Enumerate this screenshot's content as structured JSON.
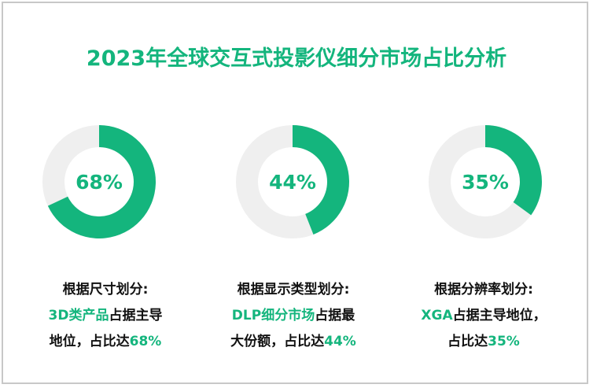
{
  "title": "2023年全球交互式投影仪细分市场占比分析",
  "colors": {
    "accent": "#14b57d",
    "track": "#efefef"
  },
  "chart_data": [
    {
      "type": "pie",
      "variant": "donut",
      "value": 68,
      "label": "68%"
    },
    {
      "type": "pie",
      "variant": "donut",
      "value": 44,
      "label": "44%"
    },
    {
      "type": "pie",
      "variant": "donut",
      "value": 35,
      "label": "35%"
    }
  ],
  "captions": [
    {
      "heading": "根据尺寸划分:",
      "hl1": "3D类产品",
      "t1": "占据主导",
      "t2": "地位，占比达",
      "hl2": "68%"
    },
    {
      "heading": "根据显示类型划分:",
      "hl1": "DLP细分市场",
      "t1": "占据最",
      "t2": "大份额，占比达",
      "hl2": "44%"
    },
    {
      "heading": "根据分辨率划分:",
      "hl1": "XGA",
      "t1": "占据主导地位，",
      "t2": "占比达",
      "hl2": "35%"
    }
  ]
}
